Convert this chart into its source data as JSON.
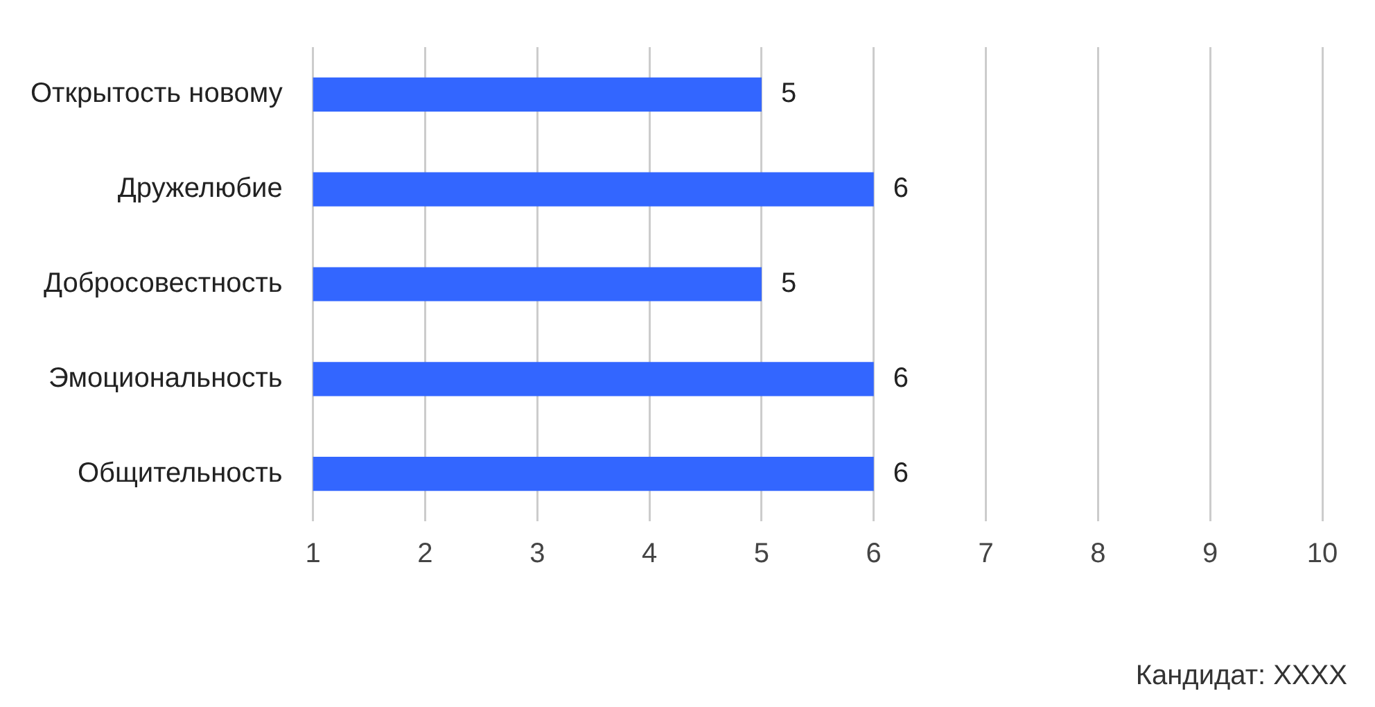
{
  "chart_data": {
    "type": "bar",
    "orientation": "horizontal",
    "categories": [
      "Открытость новому",
      "Дружелюбие",
      "Добросовестность",
      "Эмоциональность",
      "Общительность"
    ],
    "values": [
      5,
      6,
      5,
      6,
      6
    ],
    "color": "#3366ff",
    "xlim": [
      1,
      10
    ],
    "xticks": [
      1,
      2,
      3,
      4,
      5,
      6,
      7,
      8,
      9,
      10
    ],
    "grid": "x",
    "data_labels": true,
    "legend": false,
    "annotations": [
      "Кандидат: XXXX"
    ]
  }
}
